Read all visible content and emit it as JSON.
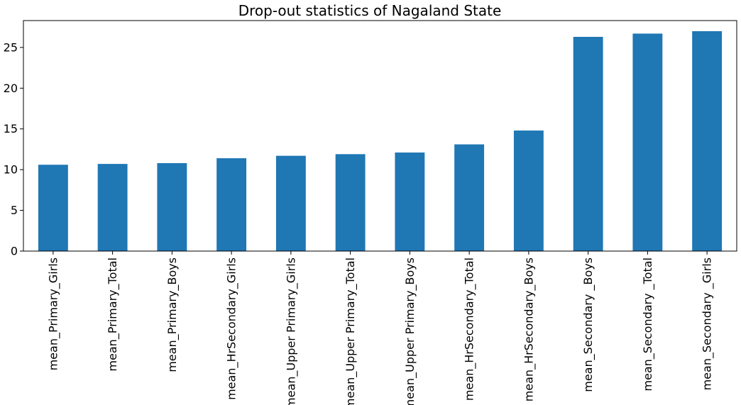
{
  "chart_data": {
    "type": "bar",
    "title": "Drop-out statistics of Nagaland State",
    "xlabel": "",
    "ylabel": "",
    "categories": [
      "mean_Primary_Girls",
      "mean_Primary_Total",
      "mean_Primary_Boys",
      "mean_HrSecondary_Girls",
      "mean_Upper Primary_Girls",
      "mean_Upper Primary_Total",
      "mean_Upper Primary_Boys",
      "mean_HrSecondary_Total",
      "mean_HrSecondary_Boys",
      "mean_Secondary _Boys",
      "mean_Secondary _Total",
      "mean_Secondary _Girls"
    ],
    "values": [
      10.6,
      10.7,
      10.8,
      11.4,
      11.7,
      11.9,
      12.1,
      13.1,
      14.8,
      26.3,
      26.7,
      27.0
    ],
    "ylim": [
      0,
      28.3
    ],
    "yticks": [
      0,
      5,
      10,
      15,
      20,
      25
    ],
    "grid": false,
    "bar_color": "#1f77b4"
  }
}
